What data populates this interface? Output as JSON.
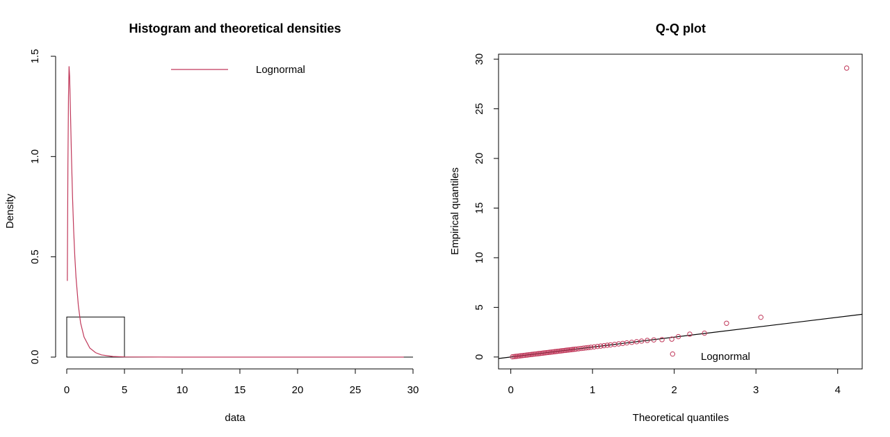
{
  "chart_data": [
    {
      "type": "histogram",
      "title": "Histogram and theoretical densities",
      "xlabel": "data",
      "ylabel": "Density",
      "xlim": [
        0,
        30
      ],
      "ylim": [
        0,
        1.5
      ],
      "xticks": [
        0,
        5,
        10,
        15,
        20,
        25,
        30
      ],
      "yticks": [
        0.0,
        0.5,
        1.0,
        1.5
      ],
      "ytick_labels": [
        "0.0",
        "0.5",
        "1.0",
        "1.5"
      ],
      "bins": [
        {
          "x0": 0,
          "x1": 5,
          "density": 0.2
        },
        {
          "x0": 5,
          "x1": 30,
          "density": 0.0
        }
      ],
      "legend": {
        "position": "top",
        "entries": [
          {
            "name": "Lognormal",
            "color": "#C0385A"
          }
        ]
      },
      "density_curve": {
        "name": "Lognormal",
        "color": "#C0385A",
        "x": [
          0.05,
          0.1,
          0.15,
          0.2,
          0.25,
          0.3,
          0.35,
          0.4,
          0.5,
          0.6,
          0.7,
          0.8,
          1.0,
          1.2,
          1.5,
          2.0,
          2.5,
          3.0,
          4.0,
          5.0,
          10.0,
          20.0,
          29.2
        ],
        "y": [
          0.38,
          0.95,
          1.3,
          1.45,
          1.4,
          1.28,
          1.15,
          1.02,
          0.8,
          0.63,
          0.5,
          0.4,
          0.26,
          0.17,
          0.1,
          0.045,
          0.022,
          0.011,
          0.003,
          0.001,
          0.0,
          0.0,
          0.0
        ]
      }
    },
    {
      "type": "scatter",
      "title": "Q-Q plot",
      "xlabel": "Theoretical quantiles",
      "ylabel": "Empirical quantiles",
      "xlim": [
        -0.15,
        4.3
      ],
      "ylim": [
        -1.2,
        30.5
      ],
      "xticks": [
        0,
        1,
        2,
        3,
        4
      ],
      "yticks": [
        0,
        5,
        10,
        15,
        20,
        25,
        30
      ],
      "legend": {
        "position": "bottom-right",
        "entries": [
          {
            "name": "Lognormal",
            "color": "#C0385A"
          }
        ]
      },
      "reference_line": {
        "slope": 1,
        "intercept": 0,
        "color": "#000000"
      },
      "point_color": "#C0385A",
      "points": {
        "x": [
          0.02,
          0.04,
          0.06,
          0.08,
          0.1,
          0.12,
          0.14,
          0.16,
          0.18,
          0.2,
          0.22,
          0.24,
          0.26,
          0.28,
          0.3,
          0.32,
          0.34,
          0.36,
          0.38,
          0.4,
          0.42,
          0.44,
          0.46,
          0.48,
          0.5,
          0.52,
          0.54,
          0.56,
          0.58,
          0.6,
          0.62,
          0.64,
          0.66,
          0.68,
          0.7,
          0.72,
          0.74,
          0.76,
          0.78,
          0.8,
          0.83,
          0.86,
          0.89,
          0.92,
          0.95,
          0.98,
          1.02,
          1.06,
          1.1,
          1.14,
          1.18,
          1.22,
          1.27,
          1.32,
          1.37,
          1.42,
          1.48,
          1.54,
          1.6,
          1.67,
          1.75,
          1.85,
          1.97,
          2.05,
          2.19,
          2.37,
          2.64,
          3.06,
          4.11,
          1.98
        ],
        "y": [
          0.02,
          0.04,
          0.06,
          0.08,
          0.1,
          0.12,
          0.14,
          0.16,
          0.18,
          0.2,
          0.22,
          0.24,
          0.26,
          0.28,
          0.3,
          0.32,
          0.34,
          0.36,
          0.38,
          0.4,
          0.42,
          0.44,
          0.46,
          0.48,
          0.5,
          0.52,
          0.54,
          0.56,
          0.58,
          0.6,
          0.62,
          0.64,
          0.66,
          0.68,
          0.7,
          0.72,
          0.74,
          0.76,
          0.78,
          0.8,
          0.83,
          0.86,
          0.89,
          0.92,
          0.95,
          0.98,
          1.02,
          1.06,
          1.1,
          1.14,
          1.18,
          1.22,
          1.27,
          1.32,
          1.37,
          1.42,
          1.48,
          1.54,
          1.6,
          1.67,
          1.72,
          1.75,
          1.8,
          2.05,
          2.3,
          2.4,
          3.4,
          4.0,
          29.1,
          0.3
        ]
      }
    }
  ]
}
